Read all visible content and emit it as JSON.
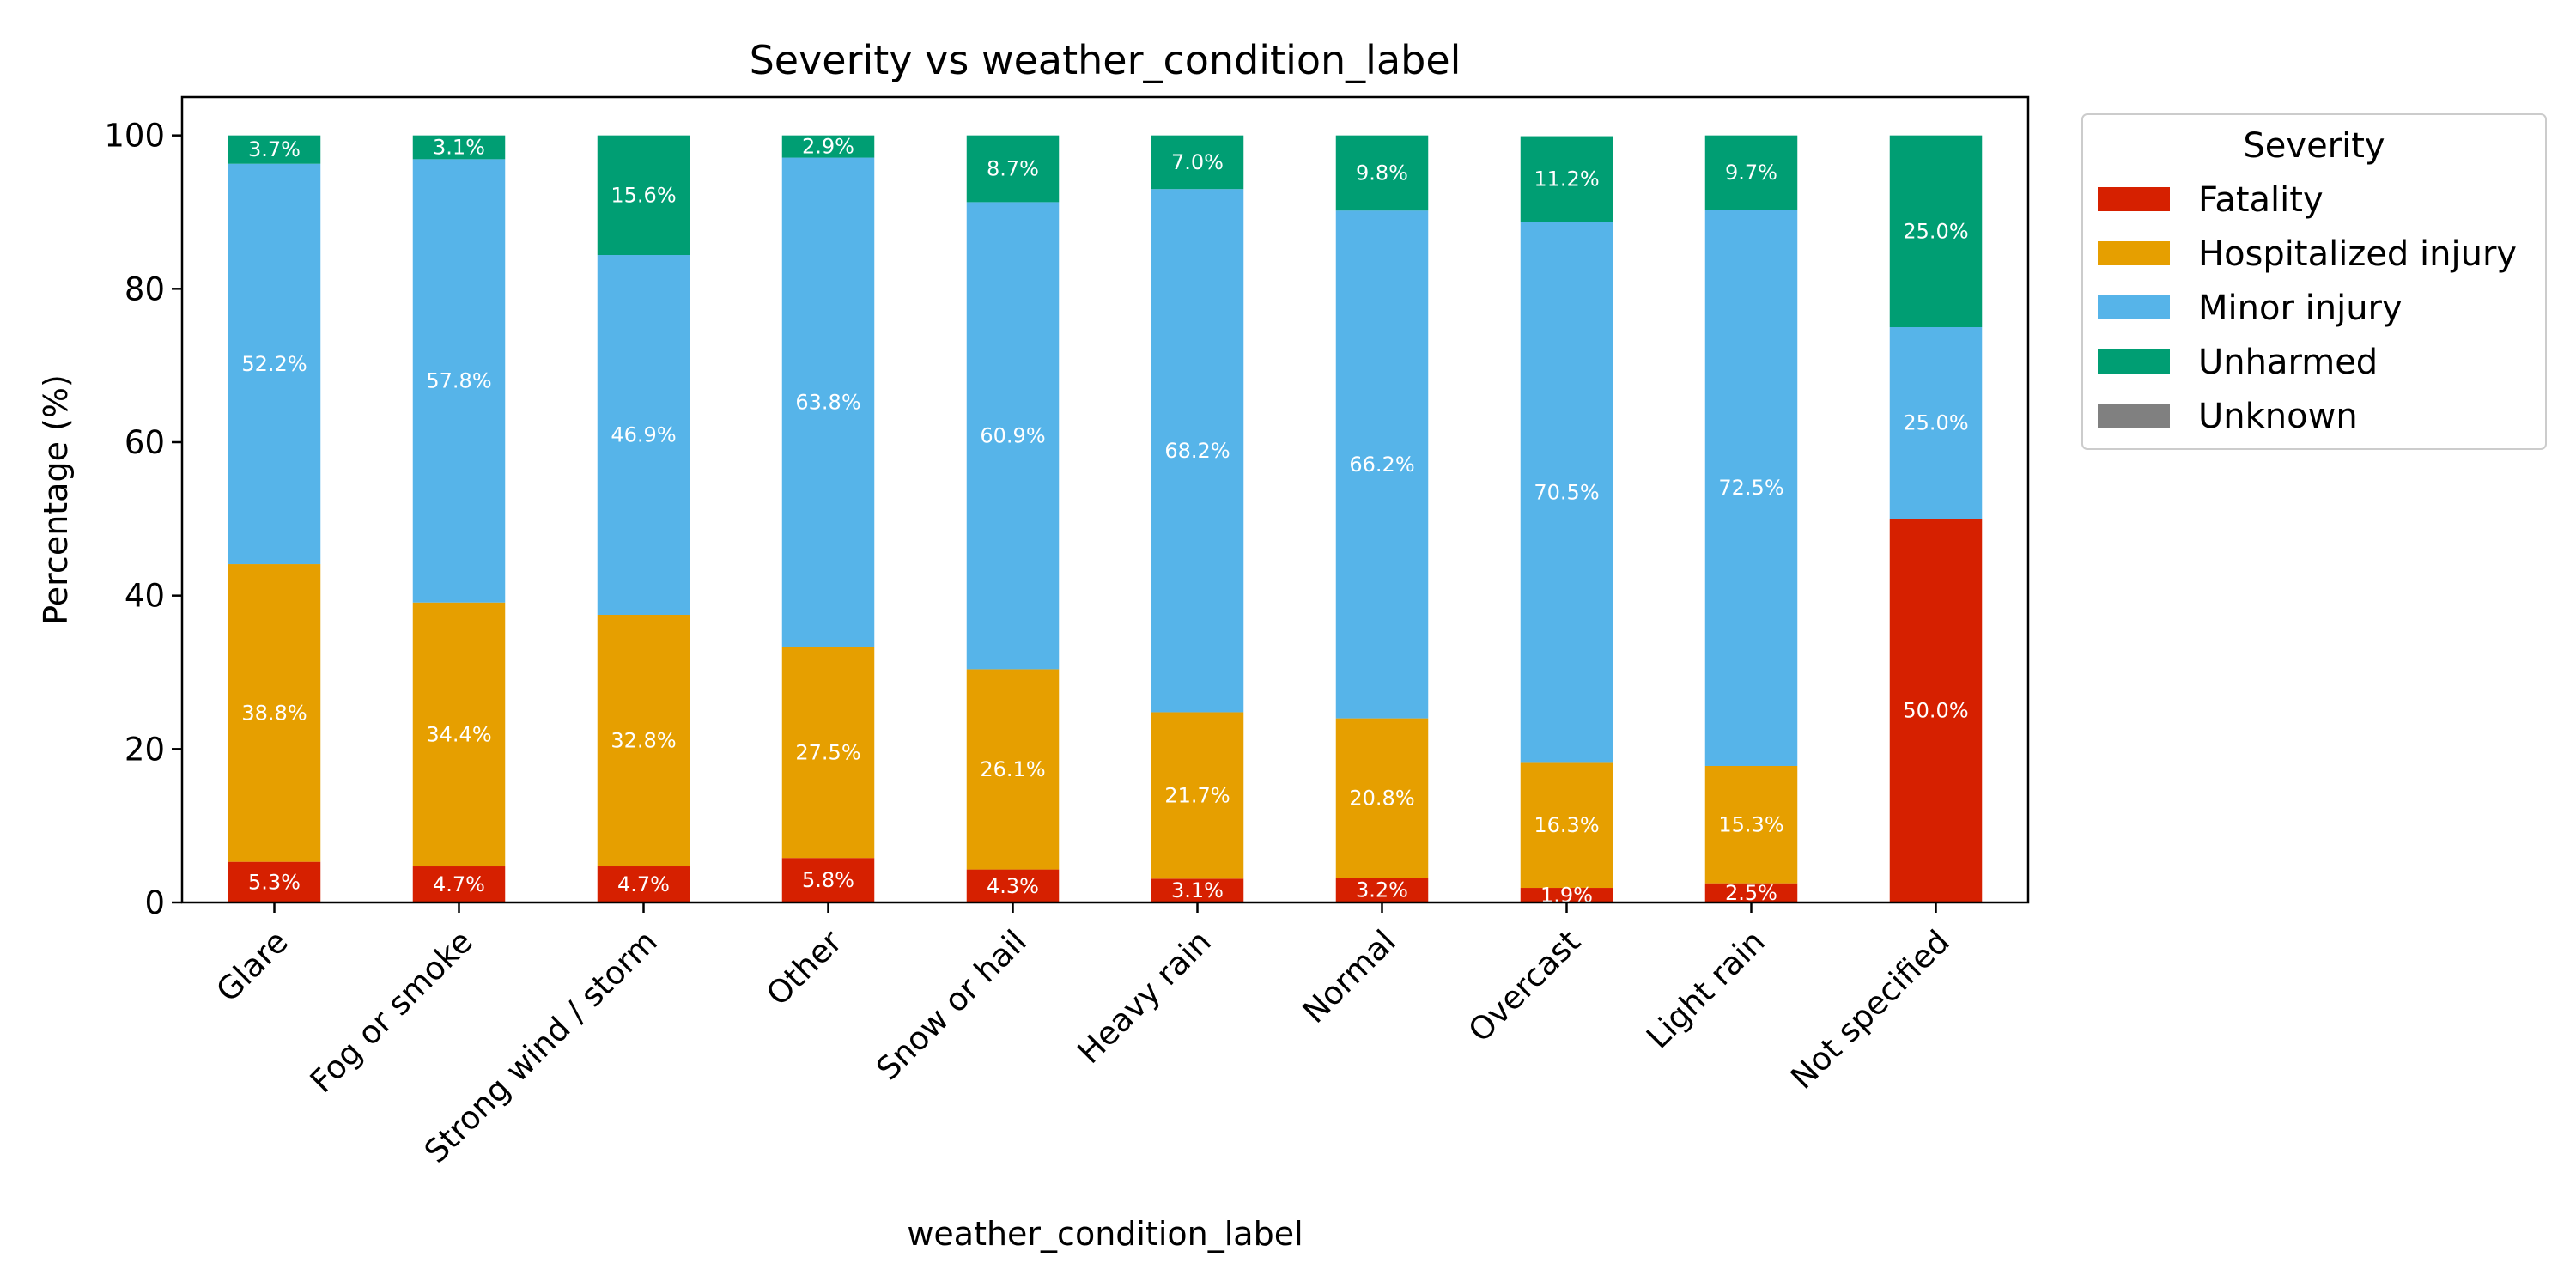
{
  "chart_data": {
    "type": "bar",
    "stacked": true,
    "title": "Severity vs weather_condition_label",
    "xlabel": "weather_condition_label",
    "ylabel": "Percentage (%)",
    "ylim": [
      0,
      105
    ],
    "yticks": [
      0,
      20,
      40,
      60,
      80,
      100
    ],
    "grid": false,
    "legend": {
      "title": "Severity",
      "position": "outside-top-right"
    },
    "categories": [
      "Glare",
      "Fog or smoke",
      "Strong wind / storm",
      "Other",
      "Snow or hail",
      "Heavy rain",
      "Normal",
      "Overcast",
      "Light rain",
      "Not specified"
    ],
    "series": [
      {
        "name": "Fatality",
        "color": "#d62000",
        "values": [
          5.3,
          4.7,
          4.7,
          5.8,
          4.3,
          3.1,
          3.2,
          1.9,
          2.5,
          50.0
        ]
      },
      {
        "name": "Hospitalized injury",
        "color": "#e69f00",
        "values": [
          38.8,
          34.4,
          32.8,
          27.5,
          26.1,
          21.7,
          20.8,
          16.3,
          15.3,
          0
        ]
      },
      {
        "name": "Minor injury",
        "color": "#56b4e9",
        "values": [
          52.2,
          57.8,
          46.9,
          63.8,
          60.9,
          68.2,
          66.2,
          70.5,
          72.5,
          25.0
        ]
      },
      {
        "name": "Unharmed",
        "color": "#009e73",
        "values": [
          3.7,
          3.1,
          15.6,
          2.9,
          8.7,
          7.0,
          9.8,
          11.2,
          9.7,
          25.0
        ]
      },
      {
        "name": "Unknown",
        "color": "#808080",
        "values": [
          0,
          0,
          0,
          0,
          0,
          0,
          0,
          0,
          0,
          0
        ]
      }
    ]
  }
}
